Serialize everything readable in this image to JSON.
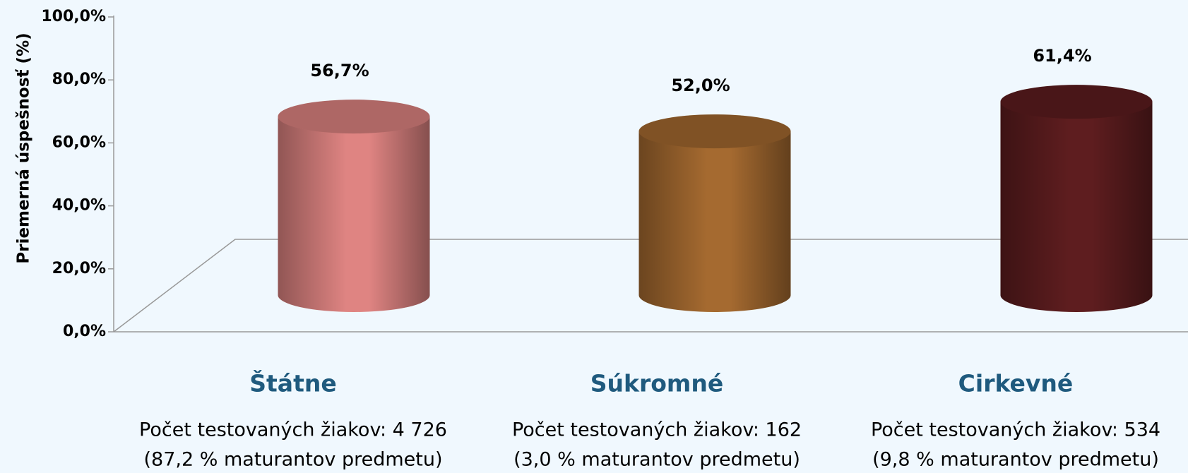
{
  "chart_data": {
    "type": "bar3d",
    "y_label": "Priemerná úspešnosť (%)",
    "categories": [
      "Štátne",
      "Súkromné",
      "Cirkevné"
    ],
    "category_notes": [
      [
        "Počet testovaných žiakov: 4 726",
        "(87,2 % maturantov predmetu)"
      ],
      [
        "Počet testovaných žiakov: 162",
        "(3,0 % maturantov predmetu)"
      ],
      [
        "Počet testovaných žiakov: 534",
        "(9,8 % maturantov predmetu)"
      ]
    ],
    "values": [
      56.7,
      52.0,
      61.4
    ],
    "value_labels": [
      "56,7%",
      "52,0%",
      "61,4%"
    ],
    "colors": [
      "#df8482",
      "#a56a30",
      "#5e1d1f"
    ],
    "ylim": [
      0,
      100
    ],
    "yticks": [
      {
        "value": 0,
        "label": "0,0%"
      },
      {
        "value": 20,
        "label": "20,0%"
      },
      {
        "value": 40,
        "label": "40,0%"
      },
      {
        "value": 60,
        "label": "60,0%"
      },
      {
        "value": 80,
        "label": "80,0%"
      },
      {
        "value": 100,
        "label": "100,0%"
      }
    ],
    "grid": false
  }
}
